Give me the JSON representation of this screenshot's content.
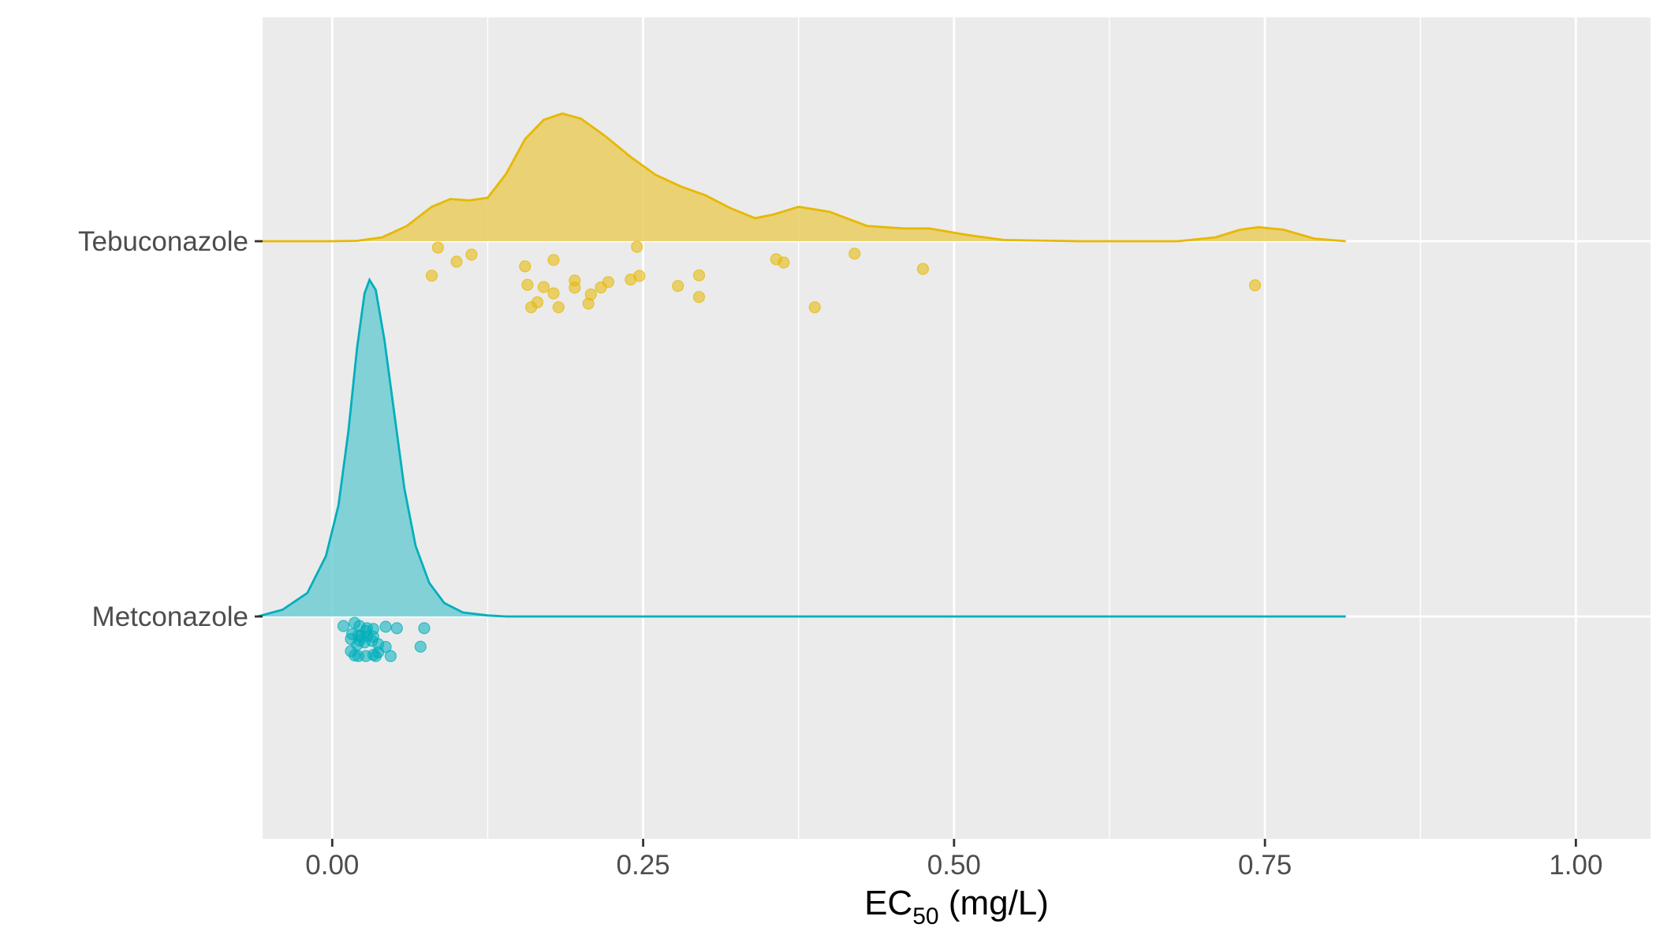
{
  "chart_data": {
    "type": "raincloud",
    "xlabel_main": "EC",
    "xlabel_sub": "50",
    "xlabel_unit": " (mg/L)",
    "xlim": [
      -0.056,
      1.06
    ],
    "xticks": [
      {
        "value": 0.0,
        "label": "0.00"
      },
      {
        "value": 0.25,
        "label": "0.25"
      },
      {
        "value": 0.5,
        "label": "0.50"
      },
      {
        "value": 0.75,
        "label": "0.75"
      },
      {
        "value": 1.0,
        "label": "1.00"
      }
    ],
    "x_minor": [
      0.125,
      0.375,
      0.625,
      0.875
    ],
    "categories": [
      "Tebuconazole",
      "Metconazole"
    ],
    "grid": true,
    "series": [
      {
        "name": "Tebuconazole",
        "color": "#E7B800",
        "fill": "#E9CC5F",
        "density": [
          [
            -0.06,
            0.0
          ],
          [
            0.0,
            0.0
          ],
          [
            0.02,
            0.003
          ],
          [
            0.04,
            0.03
          ],
          [
            0.06,
            0.12
          ],
          [
            0.08,
            0.27
          ],
          [
            0.095,
            0.33
          ],
          [
            0.11,
            0.32
          ],
          [
            0.125,
            0.34
          ],
          [
            0.14,
            0.53
          ],
          [
            0.155,
            0.8
          ],
          [
            0.17,
            0.95
          ],
          [
            0.185,
            1.0
          ],
          [
            0.2,
            0.96
          ],
          [
            0.22,
            0.82
          ],
          [
            0.24,
            0.66
          ],
          [
            0.26,
            0.52
          ],
          [
            0.28,
            0.43
          ],
          [
            0.3,
            0.36
          ],
          [
            0.32,
            0.26
          ],
          [
            0.34,
            0.18
          ],
          [
            0.355,
            0.21
          ],
          [
            0.375,
            0.27
          ],
          [
            0.4,
            0.23
          ],
          [
            0.43,
            0.12
          ],
          [
            0.46,
            0.1
          ],
          [
            0.48,
            0.1
          ],
          [
            0.51,
            0.05
          ],
          [
            0.54,
            0.01
          ],
          [
            0.6,
            0.0
          ],
          [
            0.68,
            0.0
          ],
          [
            0.71,
            0.03
          ],
          [
            0.73,
            0.09
          ],
          [
            0.745,
            0.11
          ],
          [
            0.765,
            0.09
          ],
          [
            0.79,
            0.02
          ],
          [
            0.815,
            0.0
          ]
        ],
        "points": [
          [
            0.085,
            0.03
          ],
          [
            0.112,
            0.063
          ],
          [
            0.1,
            0.096
          ],
          [
            0.178,
            0.088
          ],
          [
            0.155,
            0.118
          ],
          [
            0.08,
            0.162
          ],
          [
            0.245,
            0.026
          ],
          [
            0.42,
            0.058
          ],
          [
            0.357,
            0.085
          ],
          [
            0.363,
            0.1
          ],
          [
            0.475,
            0.13
          ],
          [
            0.295,
            0.16
          ],
          [
            0.247,
            0.163
          ],
          [
            0.195,
            0.185
          ],
          [
            0.24,
            0.18
          ],
          [
            0.222,
            0.192
          ],
          [
            0.157,
            0.205
          ],
          [
            0.17,
            0.215
          ],
          [
            0.195,
            0.218
          ],
          [
            0.216,
            0.217
          ],
          [
            0.278,
            0.21
          ],
          [
            0.178,
            0.245
          ],
          [
            0.208,
            0.25
          ],
          [
            0.295,
            0.262
          ],
          [
            0.165,
            0.287
          ],
          [
            0.206,
            0.293
          ],
          [
            0.16,
            0.31
          ],
          [
            0.182,
            0.31
          ],
          [
            0.388,
            0.31
          ],
          [
            0.742,
            0.207
          ]
        ]
      },
      {
        "name": "Metconazole",
        "color": "#00AFBB",
        "fill": "#70CCD4",
        "density": [
          [
            -0.06,
            0.0
          ],
          [
            -0.04,
            0.02
          ],
          [
            -0.02,
            0.07
          ],
          [
            -0.005,
            0.18
          ],
          [
            0.005,
            0.33
          ],
          [
            0.013,
            0.55
          ],
          [
            0.02,
            0.8
          ],
          [
            0.026,
            0.96
          ],
          [
            0.03,
            1.0
          ],
          [
            0.035,
            0.97
          ],
          [
            0.042,
            0.82
          ],
          [
            0.05,
            0.6
          ],
          [
            0.058,
            0.38
          ],
          [
            0.067,
            0.21
          ],
          [
            0.078,
            0.1
          ],
          [
            0.09,
            0.04
          ],
          [
            0.105,
            0.012
          ],
          [
            0.125,
            0.003
          ],
          [
            0.14,
            0.0
          ],
          [
            0.815,
            0.0
          ]
        ],
        "points": [
          [
            0.018,
            0.03
          ],
          [
            0.009,
            0.045
          ],
          [
            0.022,
            0.045
          ],
          [
            0.043,
            0.048
          ],
          [
            0.028,
            0.055
          ],
          [
            0.033,
            0.058
          ],
          [
            0.052,
            0.055
          ],
          [
            0.074,
            0.055
          ],
          [
            0.027,
            0.068
          ],
          [
            0.016,
            0.083
          ],
          [
            0.021,
            0.088
          ],
          [
            0.028,
            0.092
          ],
          [
            0.033,
            0.095
          ],
          [
            0.023,
            0.093
          ],
          [
            0.015,
            0.106
          ],
          [
            0.022,
            0.113
          ],
          [
            0.032,
            0.115
          ],
          [
            0.026,
            0.122
          ],
          [
            0.02,
            0.133
          ],
          [
            0.037,
            0.13
          ],
          [
            0.071,
            0.142
          ],
          [
            0.043,
            0.143
          ],
          [
            0.015,
            0.163
          ],
          [
            0.037,
            0.168
          ],
          [
            0.018,
            0.183
          ],
          [
            0.021,
            0.186
          ],
          [
            0.035,
            0.186
          ],
          [
            0.027,
            0.186
          ],
          [
            0.047,
            0.186
          ],
          [
            0.033,
            0.18
          ]
        ]
      }
    ]
  }
}
